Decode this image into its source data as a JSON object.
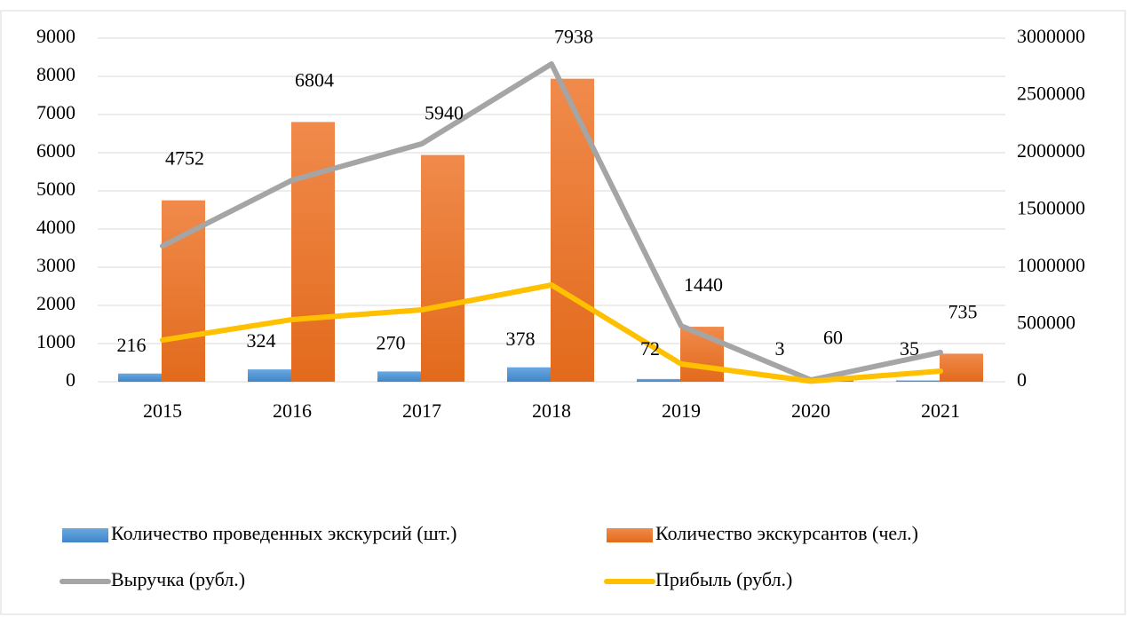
{
  "chart_data": {
    "type": "bar",
    "categories": [
      "2015",
      "2016",
      "2017",
      "2018",
      "2019",
      "2020",
      "2021"
    ],
    "series": [
      {
        "name": "Количество проведенных экскурсий (шт.)",
        "type": "bar",
        "color": "#5b9bd5",
        "values": [
          216,
          324,
          270,
          378,
          72,
          3,
          35
        ]
      },
      {
        "name": "Количество экскурсантов (чел.)",
        "type": "bar",
        "color": "#ed7d31",
        "values": [
          4752,
          6804,
          5940,
          7938,
          1440,
          60,
          735
        ]
      },
      {
        "name": "Выручка (рубл.)",
        "type": "line",
        "axis": "y2",
        "color": "#a5a5a5",
        "values": [
          1186000,
          1760000,
          2078000,
          2775000,
          488000,
          15000,
          256000
        ]
      },
      {
        "name": "Прибыль (рубл.)",
        "type": "line",
        "axis": "y2",
        "color": "#ffc000",
        "values": [
          364000,
          543000,
          628000,
          845000,
          155000,
          5000,
          93000
        ]
      }
    ],
    "ylim": [
      0,
      9000
    ],
    "yticks": [
      0,
      1000,
      2000,
      3000,
      4000,
      5000,
      6000,
      7000,
      8000,
      9000
    ],
    "y2lim": [
      0,
      3000000
    ],
    "y2ticks": [
      0,
      500000,
      1000000,
      1500000,
      2000000,
      2500000,
      3000000
    ],
    "grid": true,
    "legend": "bottom"
  }
}
